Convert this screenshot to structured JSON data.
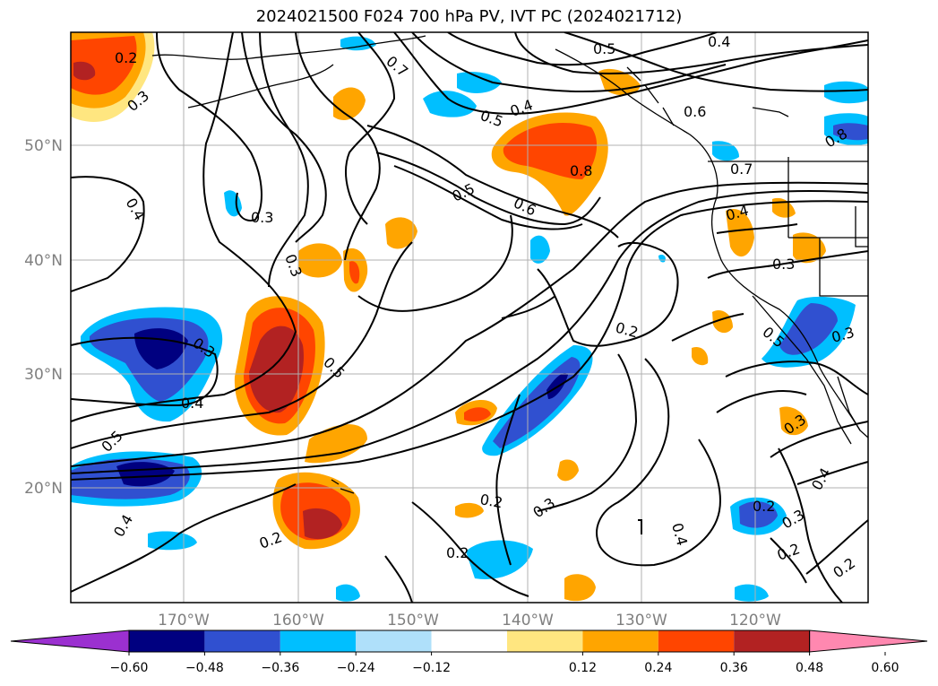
{
  "title": "2024021500 F024 700 hPa PV, IVT PC (2024021712)",
  "lat_labels": [
    "50°N",
    "40°N",
    "30°N",
    "20°N"
  ],
  "lon_labels": [
    "170°W",
    "160°W",
    "150°W",
    "140°W",
    "130°W",
    "120°W"
  ],
  "colorbar": {
    "ticks": [
      "−0.60",
      "−0.48",
      "−0.36",
      "−0.24",
      "−0.12",
      "0.12",
      "0.24",
      "0.36",
      "0.48",
      "0.60"
    ],
    "colors": [
      "#9b30d0",
      "#000080",
      "#3050d0",
      "#00bfff",
      "#afe0fa",
      "#ffffff",
      "#ffe680",
      "#ffa500",
      "#ff4500",
      "#b22222",
      "#ff88b0"
    ]
  },
  "contour_labels": [
    "0.2",
    "0.3",
    "0.4",
    "0.7",
    "0.5",
    "0.4",
    "0.5",
    "0.4",
    "0.6",
    "0.8",
    "0.8",
    "0.7",
    "0.3",
    "0.5",
    "0.6",
    "0.4",
    "0.3",
    "0.3",
    "0.3",
    "0.4",
    "0.5",
    "0.2",
    "0.3",
    "0.5",
    "0.5",
    "0.4",
    "0.2",
    "0.2",
    "0.3",
    "0.4",
    "0.2",
    "0.3",
    "0.2",
    "0.4",
    "0.2",
    "0.2",
    "0.3"
  ],
  "colors": {
    "grid": "#b0b0b0",
    "contour": "#000000",
    "frame": "#000000"
  }
}
